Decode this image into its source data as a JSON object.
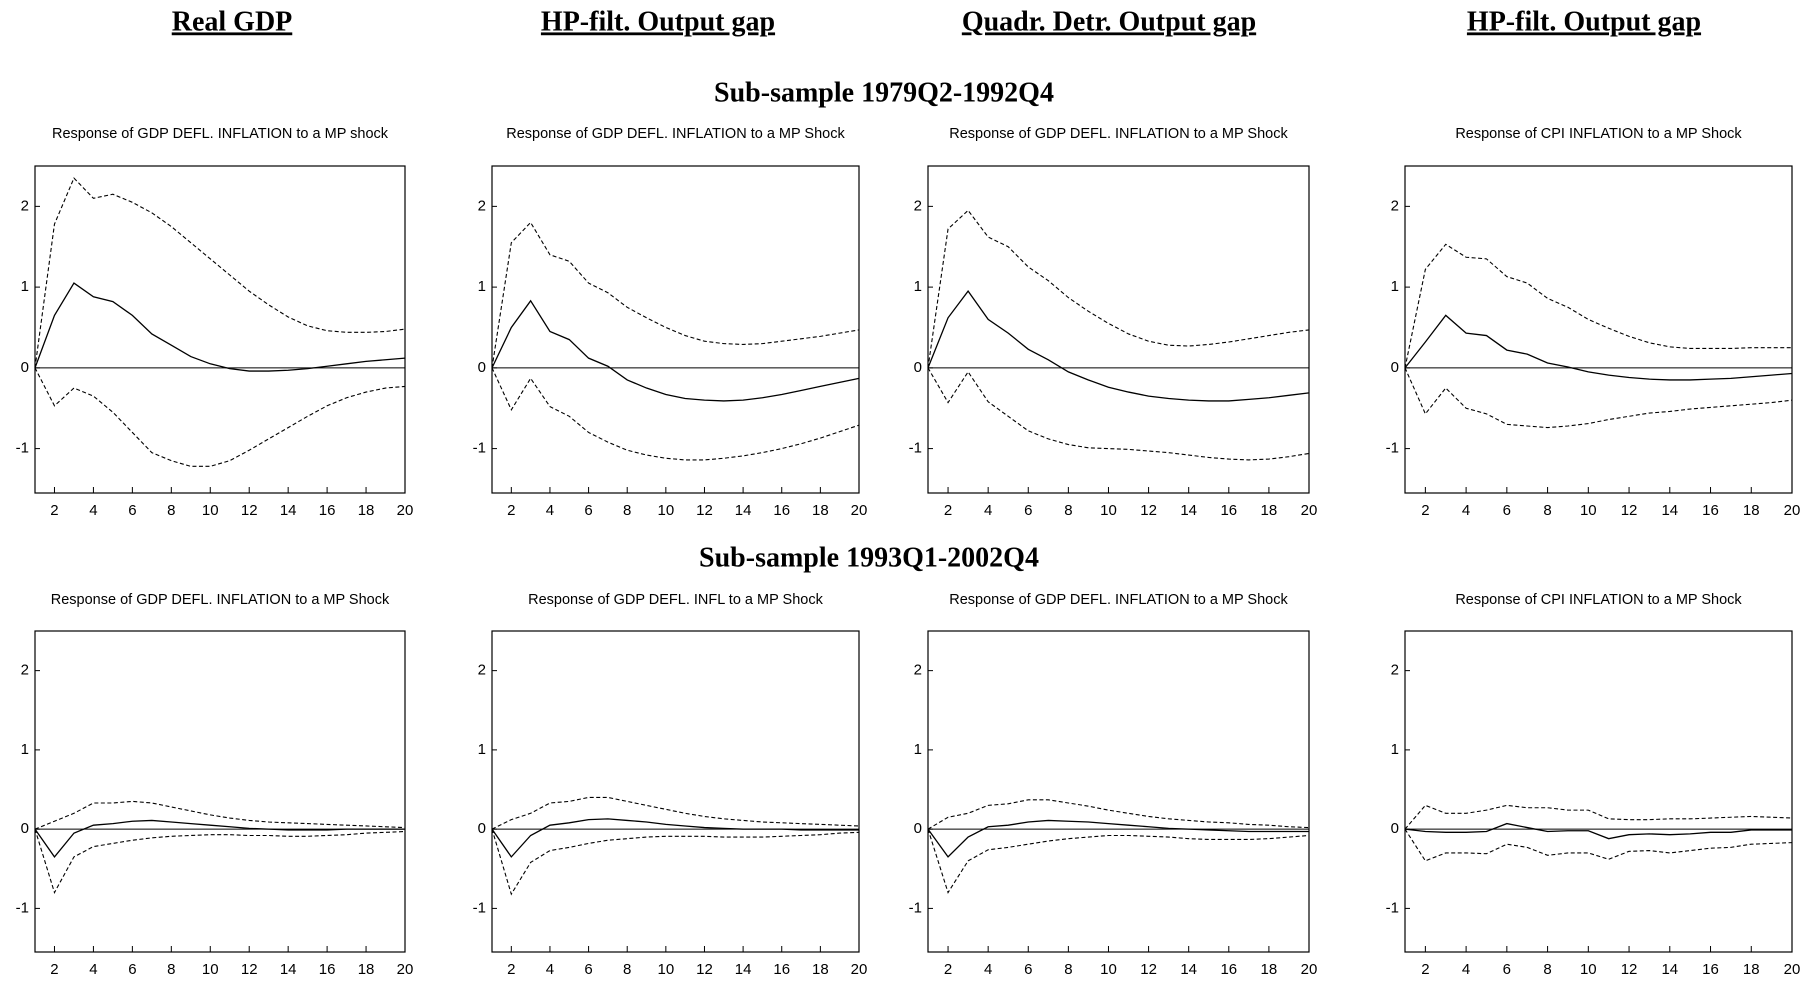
{
  "column_titles": [
    "Real GDP",
    "HP-filt. Output gap",
    "Quadr. Detr. Output gap",
    "HP-filt. Output gap"
  ],
  "row_titles": [
    "Sub-sample 1979Q2-1992Q4",
    "Sub-sample 1993Q1-2002Q4"
  ],
  "chart_data": [
    {
      "type": "line",
      "title": "Response of GDP DEFL. INFLATION to a MP shock",
      "x": [
        1,
        2,
        3,
        4,
        5,
        6,
        7,
        8,
        9,
        10,
        11,
        12,
        13,
        14,
        15,
        16,
        17,
        18,
        19,
        20
      ],
      "xlim": [
        1,
        20
      ],
      "ylim": [
        -1.55,
        2.5
      ],
      "xticks": [
        2,
        4,
        6,
        8,
        10,
        12,
        14,
        16,
        18,
        20
      ],
      "yticks": [
        -1,
        0,
        1,
        2
      ],
      "zero_line": true,
      "series": [
        {
          "color": "#000000",
          "dash": false,
          "values": [
            0,
            0.65,
            1.05,
            0.88,
            0.82,
            0.65,
            0.42,
            0.28,
            0.14,
            0.05,
            -0.01,
            -0.04,
            -0.04,
            -0.03,
            -0.01,
            0.02,
            0.05,
            0.08,
            0.1,
            0.12
          ]
        },
        {
          "color": "#000000",
          "dash": true,
          "values": [
            0,
            1.78,
            2.35,
            2.1,
            2.15,
            2.05,
            1.92,
            1.75,
            1.55,
            1.35,
            1.15,
            0.95,
            0.78,
            0.63,
            0.52,
            0.46,
            0.44,
            0.44,
            0.45,
            0.48
          ]
        },
        {
          "color": "#000000",
          "dash": true,
          "values": [
            0,
            -0.47,
            -0.25,
            -0.35,
            -0.55,
            -0.8,
            -1.05,
            -1.15,
            -1.22,
            -1.22,
            -1.15,
            -1.02,
            -0.88,
            -0.74,
            -0.6,
            -0.47,
            -0.37,
            -0.3,
            -0.25,
            -0.23
          ]
        }
      ]
    },
    {
      "type": "line",
      "title": "Response of GDP DEFL. INFLATION to a MP Shock",
      "x": [
        1,
        2,
        3,
        4,
        5,
        6,
        7,
        8,
        9,
        10,
        11,
        12,
        13,
        14,
        15,
        16,
        17,
        18,
        19,
        20
      ],
      "xlim": [
        1,
        20
      ],
      "ylim": [
        -1.55,
        2.5
      ],
      "xticks": [
        2,
        4,
        6,
        8,
        10,
        12,
        14,
        16,
        18,
        20
      ],
      "yticks": [
        -1,
        0,
        1,
        2
      ],
      "zero_line": true,
      "series": [
        {
          "color": "#000000",
          "dash": false,
          "values": [
            0,
            0.5,
            0.83,
            0.45,
            0.35,
            0.12,
            0.02,
            -0.15,
            -0.25,
            -0.33,
            -0.38,
            -0.4,
            -0.41,
            -0.4,
            -0.37,
            -0.33,
            -0.28,
            -0.23,
            -0.18,
            -0.13
          ]
        },
        {
          "color": "#000000",
          "dash": true,
          "values": [
            0,
            1.55,
            1.8,
            1.4,
            1.32,
            1.05,
            0.93,
            0.75,
            0.62,
            0.5,
            0.4,
            0.33,
            0.3,
            0.29,
            0.3,
            0.33,
            0.36,
            0.39,
            0.43,
            0.47
          ]
        },
        {
          "color": "#000000",
          "dash": true,
          "values": [
            0,
            -0.52,
            -0.13,
            -0.48,
            -0.6,
            -0.8,
            -0.92,
            -1.02,
            -1.08,
            -1.12,
            -1.14,
            -1.14,
            -1.12,
            -1.09,
            -1.05,
            -1.0,
            -0.94,
            -0.87,
            -0.79,
            -0.71
          ]
        }
      ]
    },
    {
      "type": "line",
      "title": "Response of GDP DEFL. INFLATION to a MP Shock",
      "x": [
        1,
        2,
        3,
        4,
        5,
        6,
        7,
        8,
        9,
        10,
        11,
        12,
        13,
        14,
        15,
        16,
        17,
        18,
        19,
        20
      ],
      "xlim": [
        1,
        20
      ],
      "ylim": [
        -1.55,
        2.5
      ],
      "xticks": [
        2,
        4,
        6,
        8,
        10,
        12,
        14,
        16,
        18,
        20
      ],
      "yticks": [
        -1,
        0,
        1,
        2
      ],
      "zero_line": true,
      "series": [
        {
          "color": "#000000",
          "dash": false,
          "values": [
            0,
            0.62,
            0.95,
            0.6,
            0.43,
            0.23,
            0.1,
            -0.05,
            -0.15,
            -0.24,
            -0.3,
            -0.35,
            -0.38,
            -0.4,
            -0.41,
            -0.41,
            -0.39,
            -0.37,
            -0.34,
            -0.31
          ]
        },
        {
          "color": "#000000",
          "dash": true,
          "values": [
            0,
            1.72,
            1.95,
            1.62,
            1.5,
            1.25,
            1.08,
            0.87,
            0.7,
            0.55,
            0.42,
            0.33,
            0.28,
            0.27,
            0.29,
            0.32,
            0.36,
            0.4,
            0.44,
            0.47
          ]
        },
        {
          "color": "#000000",
          "dash": true,
          "values": [
            0,
            -0.43,
            -0.05,
            -0.42,
            -0.6,
            -0.78,
            -0.88,
            -0.95,
            -0.99,
            -1.0,
            -1.01,
            -1.03,
            -1.05,
            -1.08,
            -1.11,
            -1.13,
            -1.14,
            -1.13,
            -1.1,
            -1.06
          ]
        }
      ]
    },
    {
      "type": "line",
      "title": "Response of CPI INFLATION to a MP Shock",
      "x": [
        1,
        2,
        3,
        4,
        5,
        6,
        7,
        8,
        9,
        10,
        11,
        12,
        13,
        14,
        15,
        16,
        17,
        18,
        19,
        20
      ],
      "xlim": [
        1,
        20
      ],
      "ylim": [
        -1.55,
        2.5
      ],
      "xticks": [
        2,
        4,
        6,
        8,
        10,
        12,
        14,
        16,
        18,
        20
      ],
      "yticks": [
        -1,
        0,
        1,
        2
      ],
      "zero_line": true,
      "series": [
        {
          "color": "#000000",
          "dash": false,
          "values": [
            0,
            0.32,
            0.65,
            0.43,
            0.4,
            0.22,
            0.17,
            0.06,
            0.01,
            -0.05,
            -0.09,
            -0.12,
            -0.14,
            -0.15,
            -0.15,
            -0.14,
            -0.13,
            -0.11,
            -0.09,
            -0.07
          ]
        },
        {
          "color": "#000000",
          "dash": true,
          "values": [
            0,
            1.22,
            1.53,
            1.37,
            1.35,
            1.13,
            1.05,
            0.86,
            0.75,
            0.6,
            0.49,
            0.39,
            0.31,
            0.26,
            0.24,
            0.24,
            0.24,
            0.25,
            0.25,
            0.25
          ]
        },
        {
          "color": "#000000",
          "dash": true,
          "values": [
            0,
            -0.57,
            -0.25,
            -0.5,
            -0.57,
            -0.7,
            -0.72,
            -0.74,
            -0.72,
            -0.69,
            -0.64,
            -0.6,
            -0.56,
            -0.54,
            -0.51,
            -0.49,
            -0.47,
            -0.45,
            -0.43,
            -0.4
          ]
        }
      ]
    },
    {
      "type": "line",
      "title": "Response of GDP DEFL. INFLATION to a MP Shock",
      "x": [
        1,
        2,
        3,
        4,
        5,
        6,
        7,
        8,
        9,
        10,
        11,
        12,
        13,
        14,
        15,
        16,
        17,
        18,
        19,
        20
      ],
      "xlim": [
        1,
        20
      ],
      "ylim": [
        -1.55,
        2.5
      ],
      "xticks": [
        2,
        4,
        6,
        8,
        10,
        12,
        14,
        16,
        18,
        20
      ],
      "yticks": [
        -1,
        0,
        1,
        2
      ],
      "zero_line": true,
      "series": [
        {
          "color": "#000000",
          "dash": false,
          "values": [
            0,
            -0.35,
            -0.05,
            0.05,
            0.07,
            0.1,
            0.11,
            0.09,
            0.07,
            0.05,
            0.03,
            0.01,
            0.0,
            -0.01,
            -0.01,
            -0.01,
            0.0,
            0.0,
            0.0,
            0.0
          ]
        },
        {
          "color": "#000000",
          "dash": true,
          "values": [
            0,
            0.1,
            0.2,
            0.33,
            0.33,
            0.35,
            0.33,
            0.28,
            0.23,
            0.18,
            0.14,
            0.11,
            0.09,
            0.08,
            0.07,
            0.06,
            0.05,
            0.04,
            0.03,
            0.02
          ]
        },
        {
          "color": "#000000",
          "dash": true,
          "values": [
            0,
            -0.8,
            -0.35,
            -0.22,
            -0.18,
            -0.14,
            -0.11,
            -0.09,
            -0.08,
            -0.07,
            -0.07,
            -0.08,
            -0.08,
            -0.09,
            -0.09,
            -0.08,
            -0.07,
            -0.05,
            -0.04,
            -0.03
          ]
        }
      ]
    },
    {
      "type": "line",
      "title": "Response of GDP DEFL. INFL to a MP Shock",
      "x": [
        1,
        2,
        3,
        4,
        5,
        6,
        7,
        8,
        9,
        10,
        11,
        12,
        13,
        14,
        15,
        16,
        17,
        18,
        19,
        20
      ],
      "xlim": [
        1,
        20
      ],
      "ylim": [
        -1.55,
        2.5
      ],
      "xticks": [
        2,
        4,
        6,
        8,
        10,
        12,
        14,
        16,
        18,
        20
      ],
      "yticks": [
        -1,
        0,
        1,
        2
      ],
      "zero_line": true,
      "series": [
        {
          "color": "#000000",
          "dash": false,
          "values": [
            0,
            -0.35,
            -0.08,
            0.05,
            0.08,
            0.12,
            0.13,
            0.11,
            0.09,
            0.06,
            0.04,
            0.02,
            0.01,
            0.0,
            0.0,
            0.0,
            -0.01,
            -0.01,
            -0.01,
            -0.01
          ]
        },
        {
          "color": "#000000",
          "dash": true,
          "values": [
            0,
            0.12,
            0.2,
            0.33,
            0.35,
            0.4,
            0.4,
            0.35,
            0.3,
            0.25,
            0.2,
            0.16,
            0.13,
            0.11,
            0.09,
            0.08,
            0.07,
            0.06,
            0.05,
            0.04
          ]
        },
        {
          "color": "#000000",
          "dash": true,
          "values": [
            0,
            -0.82,
            -0.42,
            -0.27,
            -0.23,
            -0.18,
            -0.14,
            -0.12,
            -0.1,
            -0.09,
            -0.09,
            -0.09,
            -0.1,
            -0.1,
            -0.1,
            -0.09,
            -0.08,
            -0.07,
            -0.05,
            -0.04
          ]
        }
      ]
    },
    {
      "type": "line",
      "title": "Response of GDP DEFL. INFLATION to a MP Shock",
      "x": [
        1,
        2,
        3,
        4,
        5,
        6,
        7,
        8,
        9,
        10,
        11,
        12,
        13,
        14,
        15,
        16,
        17,
        18,
        19,
        20
      ],
      "xlim": [
        1,
        20
      ],
      "ylim": [
        -1.55,
        2.5
      ],
      "xticks": [
        2,
        4,
        6,
        8,
        10,
        12,
        14,
        16,
        18,
        20
      ],
      "yticks": [
        -1,
        0,
        1,
        2
      ],
      "zero_line": true,
      "series": [
        {
          "color": "#000000",
          "dash": false,
          "values": [
            0,
            -0.35,
            -0.1,
            0.03,
            0.05,
            0.09,
            0.11,
            0.1,
            0.09,
            0.07,
            0.05,
            0.03,
            0.01,
            0.0,
            -0.01,
            -0.02,
            -0.03,
            -0.03,
            -0.03,
            -0.03
          ]
        },
        {
          "color": "#000000",
          "dash": true,
          "values": [
            0,
            0.15,
            0.2,
            0.3,
            0.32,
            0.37,
            0.37,
            0.33,
            0.29,
            0.24,
            0.2,
            0.16,
            0.13,
            0.11,
            0.09,
            0.08,
            0.06,
            0.05,
            0.03,
            0.02
          ]
        },
        {
          "color": "#000000",
          "dash": true,
          "values": [
            0,
            -0.8,
            -0.4,
            -0.26,
            -0.23,
            -0.19,
            -0.15,
            -0.12,
            -0.1,
            -0.08,
            -0.08,
            -0.09,
            -0.1,
            -0.12,
            -0.13,
            -0.13,
            -0.13,
            -0.12,
            -0.1,
            -0.08
          ]
        }
      ]
    },
    {
      "type": "line",
      "title": "Response of CPI INFLATION to a MP Shock",
      "x": [
        1,
        2,
        3,
        4,
        5,
        6,
        7,
        8,
        9,
        10,
        11,
        12,
        13,
        14,
        15,
        16,
        17,
        18,
        19,
        20
      ],
      "xlim": [
        1,
        20
      ],
      "ylim": [
        -1.55,
        2.5
      ],
      "xticks": [
        2,
        4,
        6,
        8,
        10,
        12,
        14,
        16,
        18,
        20
      ],
      "yticks": [
        -1,
        0,
        1,
        2
      ],
      "zero_line": true,
      "series": [
        {
          "color": "#000000",
          "dash": false,
          "values": [
            0,
            -0.03,
            -0.04,
            -0.04,
            -0.03,
            0.07,
            0.02,
            -0.03,
            -0.02,
            -0.02,
            -0.12,
            -0.07,
            -0.06,
            -0.07,
            -0.06,
            -0.04,
            -0.04,
            -0.01,
            -0.01,
            -0.01
          ]
        },
        {
          "color": "#000000",
          "dash": true,
          "values": [
            0,
            0.3,
            0.2,
            0.2,
            0.24,
            0.3,
            0.27,
            0.27,
            0.24,
            0.24,
            0.13,
            0.12,
            0.12,
            0.13,
            0.13,
            0.14,
            0.15,
            0.16,
            0.15,
            0.14
          ]
        },
        {
          "color": "#000000",
          "dash": true,
          "values": [
            0,
            -0.4,
            -0.3,
            -0.3,
            -0.31,
            -0.19,
            -0.23,
            -0.33,
            -0.3,
            -0.3,
            -0.38,
            -0.28,
            -0.27,
            -0.3,
            -0.27,
            -0.24,
            -0.23,
            -0.19,
            -0.18,
            -0.17
          ]
        }
      ]
    }
  ]
}
